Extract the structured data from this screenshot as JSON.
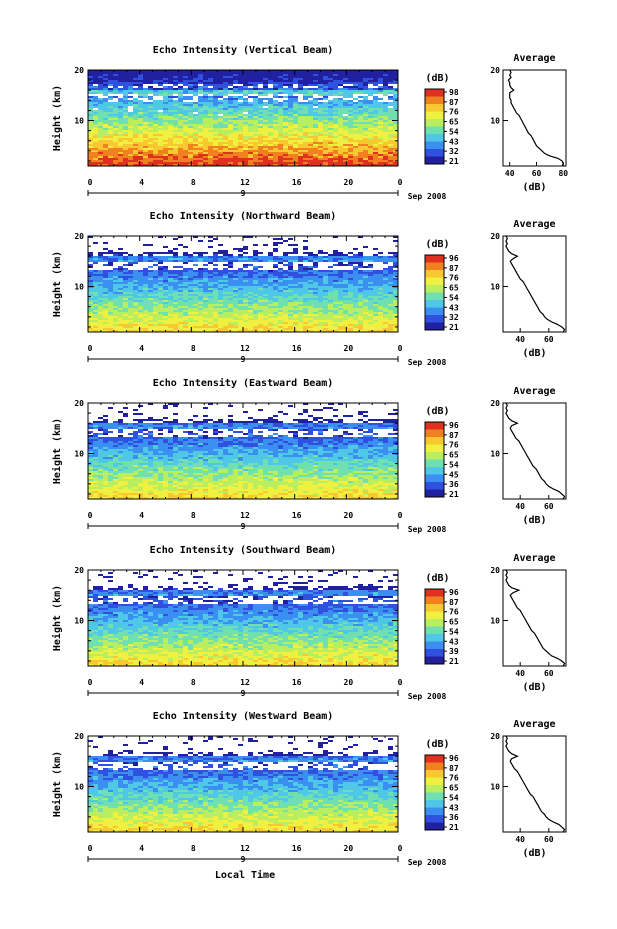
{
  "figure": {
    "xlabel": "Local Time",
    "date_label": "Sep 2008",
    "day_label": "9"
  },
  "colorbar": {
    "unit_label": "(dB)",
    "tick_labels": [
      "96",
      "87",
      "76",
      "65",
      "54",
      "43",
      "32",
      "21"
    ],
    "colors": [
      "#2020a0",
      "#3050e0",
      "#3a8ff0",
      "#4fc8e8",
      "#70e0b0",
      "#b8ee60",
      "#f0f040",
      "#f8c830",
      "#f08020",
      "#e03020"
    ]
  },
  "panels": [
    {
      "title": "Echo Intensity (Vertical Beam)",
      "ylabel": "Height (km)",
      "y_tick_labels": [
        "20",
        "10"
      ],
      "x_tick_labels": [
        "0",
        "4",
        "8",
        "12",
        "16",
        "20",
        "0"
      ],
      "cb_tick_labels": [
        "98",
        "87",
        "76",
        "65",
        "54",
        "43",
        "32",
        "21"
      ],
      "profile": {
        "title": "Average",
        "xlabel": "(dB)",
        "x_tick_labels": [
          "40",
          "60",
          "80"
        ],
        "xlim": [
          35,
          82
        ],
        "height_km": [
          1,
          1.5,
          2,
          2.5,
          3,
          3.5,
          4,
          4.5,
          5,
          5.5,
          6,
          6.5,
          7,
          7.5,
          8,
          8.5,
          9,
          9.5,
          10,
          10.5,
          11,
          11.5,
          12,
          12.5,
          13,
          13.5,
          14,
          14.5,
          15,
          15.5,
          16,
          16.5,
          17,
          17.5,
          18,
          18.5,
          19,
          19.5,
          20
        ],
        "values": [
          79,
          80,
          79,
          76,
          70,
          66,
          64,
          62,
          60,
          59,
          58,
          57,
          56,
          54,
          53,
          52,
          51,
          50,
          49,
          48,
          47,
          45,
          44,
          43,
          42,
          41,
          41,
          40,
          40,
          40,
          43,
          41,
          40,
          40,
          39,
          41,
          40,
          41,
          40
        ]
      }
    },
    {
      "title": "Echo Intensity (Northward Beam)",
      "ylabel": "Height (km)",
      "y_tick_labels": [
        "20",
        "10"
      ],
      "x_tick_labels": [
        "0",
        "4",
        "8",
        "12",
        "16",
        "20",
        "0"
      ],
      "cb_tick_labels": [
        "96",
        "87",
        "76",
        "65",
        "54",
        "43",
        "32",
        "21"
      ],
      "profile": {
        "title": "Average",
        "xlabel": "(dB)",
        "x_tick_labels": [
          "40",
          "60"
        ],
        "xlim": [
          28,
          72
        ],
        "height_km": [
          1,
          1.5,
          2,
          2.5,
          3,
          3.5,
          4,
          4.5,
          5,
          5.5,
          6,
          6.5,
          7,
          7.5,
          8,
          8.5,
          9,
          9.5,
          10,
          10.5,
          11,
          11.5,
          12,
          12.5,
          13,
          13.5,
          14,
          14.5,
          15,
          15.5,
          16,
          16.5,
          17,
          17.5,
          18,
          18.5,
          19,
          19.5,
          20
        ],
        "values": [
          70,
          71,
          69,
          66,
          62,
          59,
          57,
          56,
          54,
          53,
          52,
          51,
          50,
          49,
          48,
          47,
          46,
          45,
          44,
          43,
          42,
          40,
          39,
          38,
          37,
          36,
          35,
          34,
          33,
          35,
          38,
          34,
          32,
          31,
          30,
          31,
          30,
          31,
          30
        ]
      }
    },
    {
      "title": "Echo Intensity (Eastward Beam)",
      "ylabel": "Height (km)",
      "y_tick_labels": [
        "20",
        "10"
      ],
      "x_tick_labels": [
        "0",
        "4",
        "8",
        "12",
        "16",
        "20",
        "0"
      ],
      "cb_tick_labels": [
        "96",
        "87",
        "76",
        "65",
        "54",
        "45",
        "36",
        "21"
      ],
      "profile": {
        "title": "Average",
        "xlabel": "(dB)",
        "x_tick_labels": [
          "40",
          "60"
        ],
        "xlim": [
          28,
          72
        ],
        "height_km": [
          1,
          1.5,
          2,
          2.5,
          3,
          3.5,
          4,
          4.5,
          5,
          5.5,
          6,
          6.5,
          7,
          7.5,
          8,
          8.5,
          9,
          9.5,
          10,
          10.5,
          11,
          11.5,
          12,
          12.5,
          13,
          13.5,
          14,
          14.5,
          15,
          15.5,
          16,
          16.5,
          17,
          17.5,
          18,
          18.5,
          19,
          19.5,
          20
        ],
        "values": [
          70,
          71,
          69,
          67,
          63,
          60,
          58,
          57,
          55,
          54,
          53,
          52,
          51,
          49,
          48,
          47,
          46,
          45,
          44,
          43,
          42,
          41,
          40,
          39,
          37,
          36,
          35,
          34,
          33,
          34,
          38,
          34,
          32,
          31,
          30,
          31,
          30,
          31,
          30
        ]
      }
    },
    {
      "title": "Echo Intensity (Southward Beam)",
      "ylabel": "Height (km)",
      "y_tick_labels": [
        "20",
        "10"
      ],
      "x_tick_labels": [
        "0",
        "4",
        "8",
        "12",
        "16",
        "20",
        "0"
      ],
      "cb_tick_labels": [
        "96",
        "87",
        "76",
        "65",
        "54",
        "43",
        "39",
        "21"
      ],
      "profile": {
        "title": "Average",
        "xlabel": "(dB)",
        "x_tick_labels": [
          "40",
          "60"
        ],
        "xlim": [
          28,
          72
        ],
        "height_km": [
          1,
          1.5,
          2,
          2.5,
          3,
          3.5,
          4,
          4.5,
          5,
          5.5,
          6,
          6.5,
          7,
          7.5,
          8,
          8.5,
          9,
          9.5,
          10,
          10.5,
          11,
          11.5,
          12,
          12.5,
          13,
          13.5,
          14,
          14.5,
          15,
          15.5,
          16,
          16.5,
          17,
          17.5,
          18,
          18.5,
          19,
          19.5,
          20
        ],
        "values": [
          70,
          71,
          69,
          66,
          62,
          60,
          58,
          56,
          55,
          54,
          53,
          52,
          51,
          50,
          48,
          47,
          46,
          45,
          44,
          43,
          42,
          41,
          40,
          38,
          37,
          36,
          35,
          34,
          33,
          35,
          39,
          34,
          32,
          31,
          30,
          31,
          30,
          31,
          30
        ]
      }
    },
    {
      "title": "Echo Intensity (Westward Beam)",
      "ylabel": "Height (km)",
      "y_tick_labels": [
        "20",
        "10"
      ],
      "x_tick_labels": [
        "0",
        "4",
        "8",
        "12",
        "16",
        "20",
        "0"
      ],
      "cb_tick_labels": [
        "96",
        "87",
        "76",
        "65",
        "54",
        "43",
        "36",
        "21"
      ],
      "profile": {
        "title": "Average",
        "xlabel": "(dB)",
        "x_tick_labels": [
          "40",
          "60"
        ],
        "xlim": [
          28,
          72
        ],
        "height_km": [
          1,
          1.5,
          2,
          2.5,
          3,
          3.5,
          4,
          4.5,
          5,
          5.5,
          6,
          6.5,
          7,
          7.5,
          8,
          8.5,
          9,
          9.5,
          10,
          10.5,
          11,
          11.5,
          12,
          12.5,
          13,
          13.5,
          14,
          14.5,
          15,
          15.5,
          16,
          16.5,
          17,
          17.5,
          18,
          18.5,
          19,
          19.5,
          20
        ],
        "values": [
          70,
          71,
          69,
          67,
          63,
          60,
          58,
          57,
          55,
          54,
          53,
          52,
          51,
          50,
          49,
          47,
          46,
          45,
          44,
          43,
          42,
          41,
          40,
          39,
          38,
          36,
          35,
          34,
          33,
          34,
          38,
          34,
          32,
          31,
          30,
          31,
          30,
          31,
          30
        ]
      }
    }
  ],
  "chart_data": [
    {
      "type": "heatmap",
      "title": "Echo Intensity (Vertical Beam)",
      "ylabel": "Height (km)",
      "xlabel": "Local Time",
      "x_ticks": [
        "0",
        "4",
        "8",
        "12",
        "16",
        "20",
        "0"
      ],
      "y_ticks": [
        "20",
        "10"
      ],
      "xlim": [
        0,
        24
      ],
      "ylim": [
        1,
        20
      ],
      "colorbar_label": "(dB)",
      "colorbar_ticks": [
        "98",
        "87",
        "76",
        "65",
        "54",
        "43",
        "32",
        "21"
      ]
    },
    {
      "type": "heatmap",
      "title": "Echo Intensity (Northward Beam)",
      "ylabel": "Height (km)",
      "xlabel": "Local Time",
      "x_ticks": [
        "0",
        "4",
        "8",
        "12",
        "16",
        "20",
        "0"
      ],
      "y_ticks": [
        "20",
        "10"
      ],
      "xlim": [
        0,
        24
      ],
      "ylim": [
        1,
        20
      ],
      "colorbar_label": "(dB)",
      "colorbar_ticks": [
        "96",
        "87",
        "76",
        "65",
        "54",
        "43",
        "32",
        "21"
      ]
    },
    {
      "type": "heatmap",
      "title": "Echo Intensity (Eastward Beam)",
      "ylabel": "Height (km)",
      "xlabel": "Local Time",
      "x_ticks": [
        "0",
        "4",
        "8",
        "12",
        "16",
        "20",
        "0"
      ],
      "y_ticks": [
        "20",
        "10"
      ],
      "xlim": [
        0,
        24
      ],
      "ylim": [
        1,
        20
      ],
      "colorbar_label": "(dB)",
      "colorbar_ticks": [
        "96",
        "87",
        "76",
        "65",
        "54",
        "45",
        "36",
        "21"
      ]
    },
    {
      "type": "heatmap",
      "title": "Echo Intensity (Southward Beam)",
      "ylabel": "Height (km)",
      "xlabel": "Local Time",
      "x_ticks": [
        "0",
        "4",
        "8",
        "12",
        "16",
        "20",
        "0"
      ],
      "y_ticks": [
        "20",
        "10"
      ],
      "xlim": [
        0,
        24
      ],
      "ylim": [
        1,
        20
      ],
      "colorbar_label": "(dB)",
      "colorbar_ticks": [
        "96",
        "87",
        "76",
        "65",
        "54",
        "43",
        "39",
        "21"
      ]
    },
    {
      "type": "heatmap",
      "title": "Echo Intensity (Westward Beam)",
      "ylabel": "Height (km)",
      "xlabel": "Local Time",
      "x_ticks": [
        "0",
        "4",
        "8",
        "12",
        "16",
        "20",
        "0"
      ],
      "y_ticks": [
        "20",
        "10"
      ],
      "xlim": [
        0,
        24
      ],
      "ylim": [
        1,
        20
      ],
      "colorbar_label": "(dB)",
      "colorbar_ticks": [
        "96",
        "87",
        "76",
        "65",
        "54",
        "43",
        "36",
        "21"
      ]
    }
  ]
}
